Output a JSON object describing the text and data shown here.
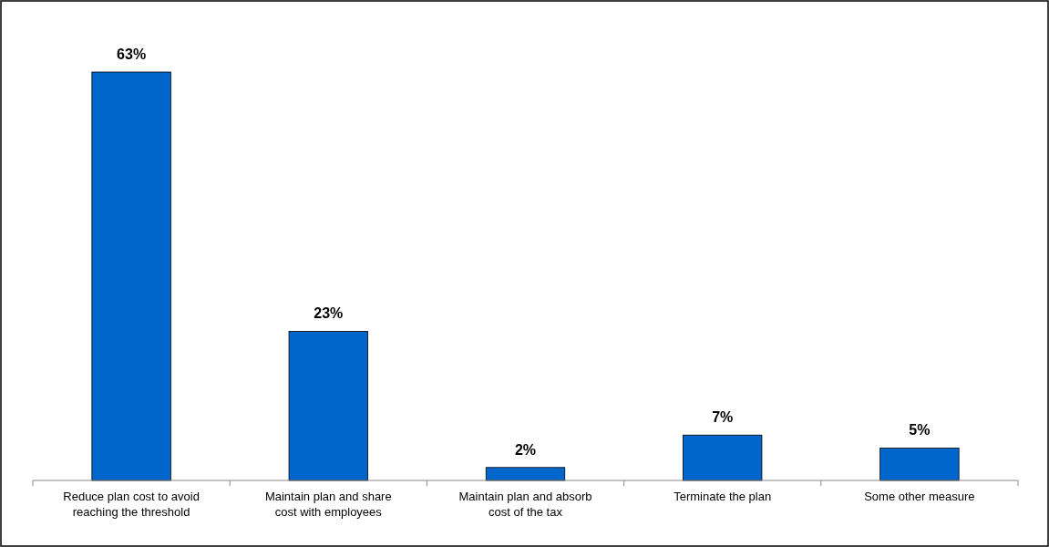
{
  "chart_data": {
    "type": "bar",
    "categories": [
      "Reduce plan cost to avoid reaching the threshold",
      "Maintain plan and share cost with employees",
      "Maintain plan and absorb cost of the tax",
      "Terminate the plan",
      "Some other measure"
    ],
    "values": [
      63,
      23,
      2,
      7,
      5
    ],
    "value_labels": [
      "63%",
      "23%",
      "2%",
      "7%",
      "5%"
    ],
    "color": "#0066cc"
  }
}
